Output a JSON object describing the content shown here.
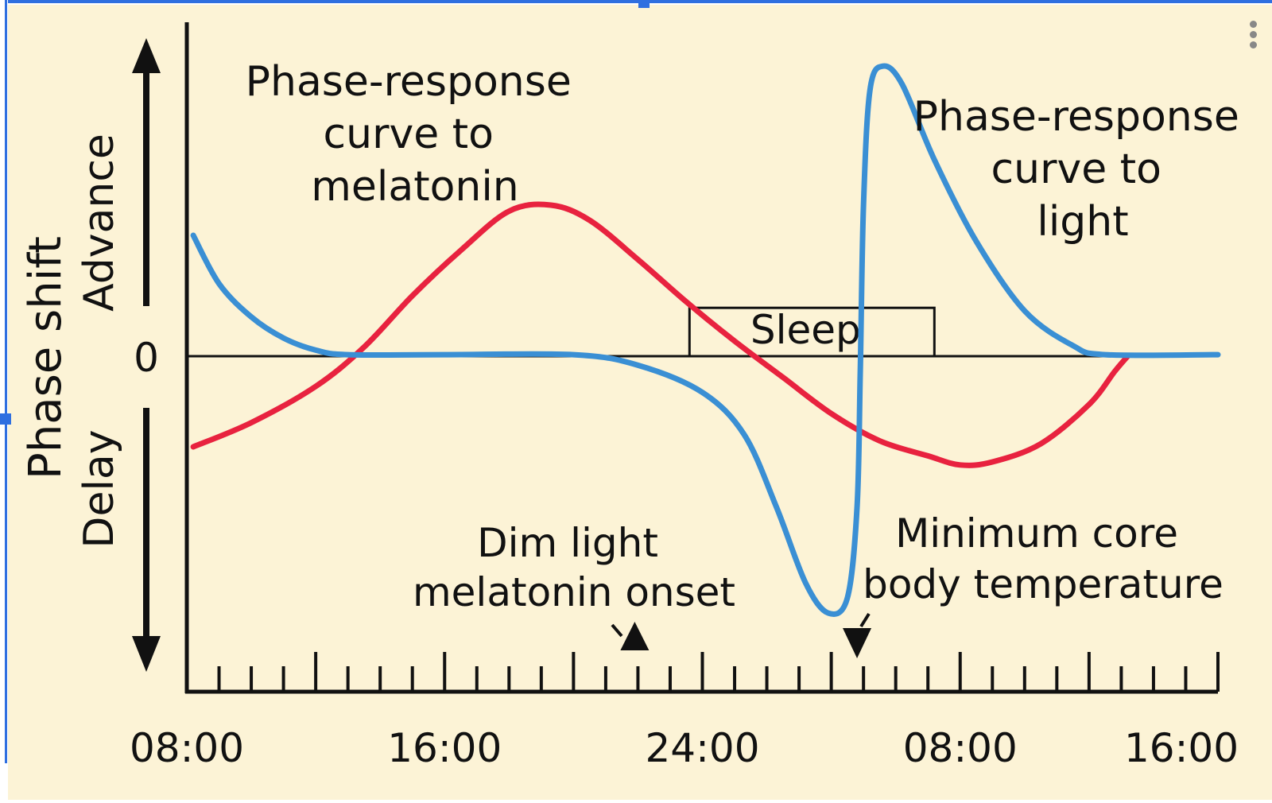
{
  "colors": {
    "background": "#fcf3d6",
    "melatonin_curve": "#e8223f",
    "light_curve": "#3a8fd4",
    "axis": "#111111",
    "selection": "#2f6fe0"
  },
  "chart_data": {
    "type": "line",
    "ylabel": "Phase shift",
    "y_direction_labels": {
      "up": "Advance",
      "down": "Delay",
      "zero": "0"
    },
    "x_unit": "clock hours (elapsed from 08:00)",
    "xlim": [
      0,
      32
    ],
    "ylim": [
      -10,
      10
    ],
    "x_tick_labels": [
      {
        "x": 0,
        "label": "08:00"
      },
      {
        "x": 8,
        "label": "16:00"
      },
      {
        "x": 16,
        "label": "24:00"
      },
      {
        "x": 24,
        "label": "08:00"
      },
      {
        "x": 32,
        "label": "16:00"
      }
    ],
    "minor_tick_step": 1,
    "series": [
      {
        "name": "Phase-response curve to melatonin",
        "label_lines": [
          "Phase-response",
          "curve to",
          "melatonin"
        ],
        "color": "#e8223f",
        "points": [
          [
            0.2,
            -3.0
          ],
          [
            2,
            -2.2
          ],
          [
            4,
            -1.0
          ],
          [
            5.5,
            0.3
          ],
          [
            7,
            2.0
          ],
          [
            8.5,
            3.5
          ],
          [
            10,
            4.8
          ],
          [
            11.3,
            5.0
          ],
          [
            12.5,
            4.5
          ],
          [
            14,
            3.2
          ],
          [
            15.5,
            1.8
          ],
          [
            17,
            0.5
          ],
          [
            18.5,
            -0.7
          ],
          [
            20,
            -1.9
          ],
          [
            21.5,
            -2.8
          ],
          [
            23,
            -3.3
          ],
          [
            24,
            -3.6
          ],
          [
            25,
            -3.5
          ],
          [
            26.5,
            -2.9
          ],
          [
            28,
            -1.6
          ],
          [
            28.8,
            -0.5
          ],
          [
            29.2,
            0
          ]
        ]
      },
      {
        "name": "Phase-response curve to light",
        "label_lines": [
          "Phase-response",
          "curve to",
          "light"
        ],
        "color": "#3a8fd4",
        "points": [
          [
            0.2,
            4.0
          ],
          [
            1,
            2.4
          ],
          [
            2,
            1.3
          ],
          [
            3,
            0.6
          ],
          [
            4,
            0.2
          ],
          [
            5,
            0.05
          ],
          [
            8,
            0.05
          ],
          [
            12,
            0.05
          ],
          [
            14,
            -0.3
          ],
          [
            16,
            -1.2
          ],
          [
            17.3,
            -2.6
          ],
          [
            18.3,
            -5.0
          ],
          [
            19.2,
            -7.5
          ],
          [
            19.9,
            -8.5
          ],
          [
            20.5,
            -8.0
          ],
          [
            20.8,
            -5.0
          ],
          [
            20.9,
            -0.5
          ],
          [
            21.0,
            5.0
          ],
          [
            21.2,
            8.8
          ],
          [
            21.6,
            9.6
          ],
          [
            22.2,
            9.0
          ],
          [
            23.2,
            6.5
          ],
          [
            24.5,
            3.8
          ],
          [
            26,
            1.5
          ],
          [
            27.5,
            0.35
          ],
          [
            28.5,
            0.05
          ],
          [
            32,
            0.05
          ]
        ]
      }
    ],
    "annotations": [
      {
        "id": "sleep",
        "text": "Sleep",
        "x_start": 15.6,
        "x_end": 23.2,
        "y_top": 1.6
      },
      {
        "id": "dlmo",
        "text_lines": [
          "Dim light",
          "melatonin onset"
        ],
        "x": 13.9,
        "marker": "up-triangle"
      },
      {
        "id": "tmin",
        "text_lines": [
          "Minimum core",
          "body temperature"
        ],
        "x": 20.8,
        "marker": "down-triangle"
      }
    ]
  }
}
